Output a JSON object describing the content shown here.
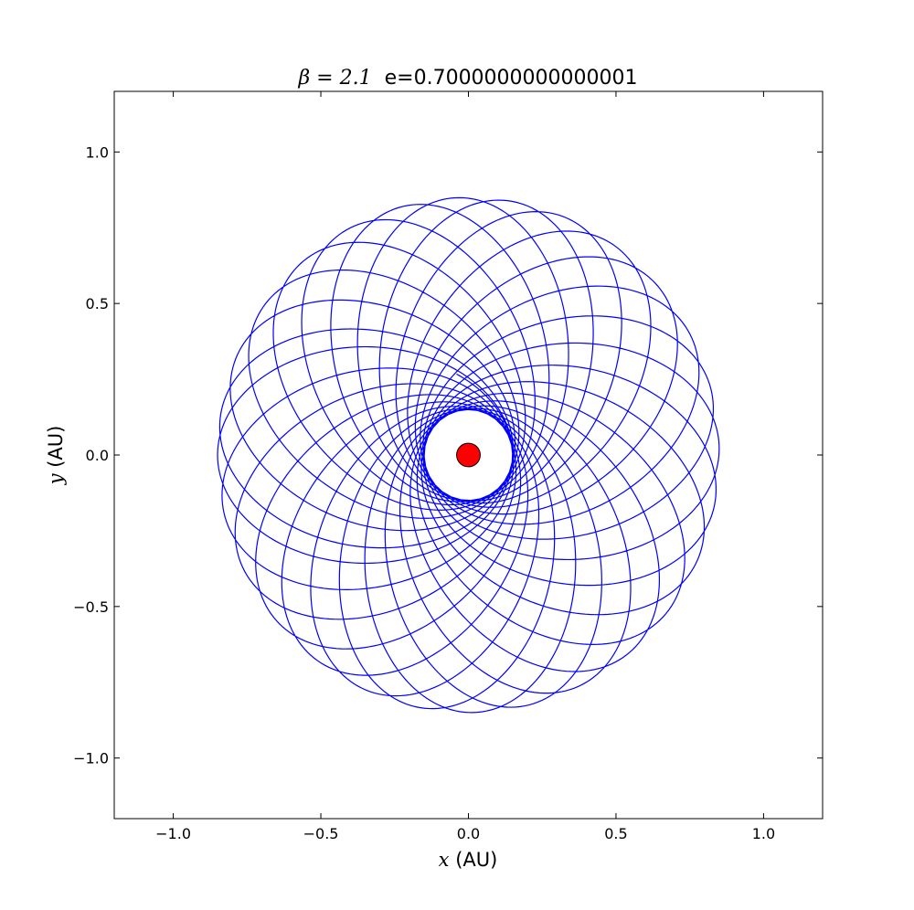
{
  "chart_data": {
    "type": "line",
    "title": {
      "math": "β = 2.1",
      "text": "e=0.7000000000000001"
    },
    "xlabel": {
      "math": "x",
      "text": " (AU)"
    },
    "ylabel": {
      "math": "y",
      "text": " (AU)"
    },
    "xlim": [
      -1.2,
      1.2
    ],
    "ylim": [
      -1.2,
      1.2
    ],
    "x_ticks": [
      -1.0,
      -0.5,
      0.0,
      0.5,
      1.0
    ],
    "y_ticks": [
      -1.0,
      -0.5,
      0.0,
      0.5,
      1.0
    ],
    "x_tick_labels": [
      "−1.0",
      "−0.5",
      "0.0",
      "0.5",
      "1.0"
    ],
    "y_tick_labels": [
      "−1.0",
      "−0.5",
      "0.0",
      "0.5",
      "1.0"
    ],
    "grid": false,
    "series": [
      {
        "kind": "precessing-orbit",
        "color": "#0000ff",
        "semi_major_axis": 0.5,
        "eccentricity": 0.7,
        "loops": 29,
        "precession_per_orbit_deg": 13.0,
        "start": [
          1.0,
          0.0
        ],
        "end": [
          -0.15,
          0.99
        ]
      }
    ],
    "central_body": {
      "x": 0.0,
      "y": 0.0,
      "radius": 0.04,
      "color": "#ff0000"
    }
  },
  "colors": {
    "orbit": "#0000ff",
    "sun": "#ff0000",
    "axes": "#000000",
    "background": "#ffffff"
  }
}
